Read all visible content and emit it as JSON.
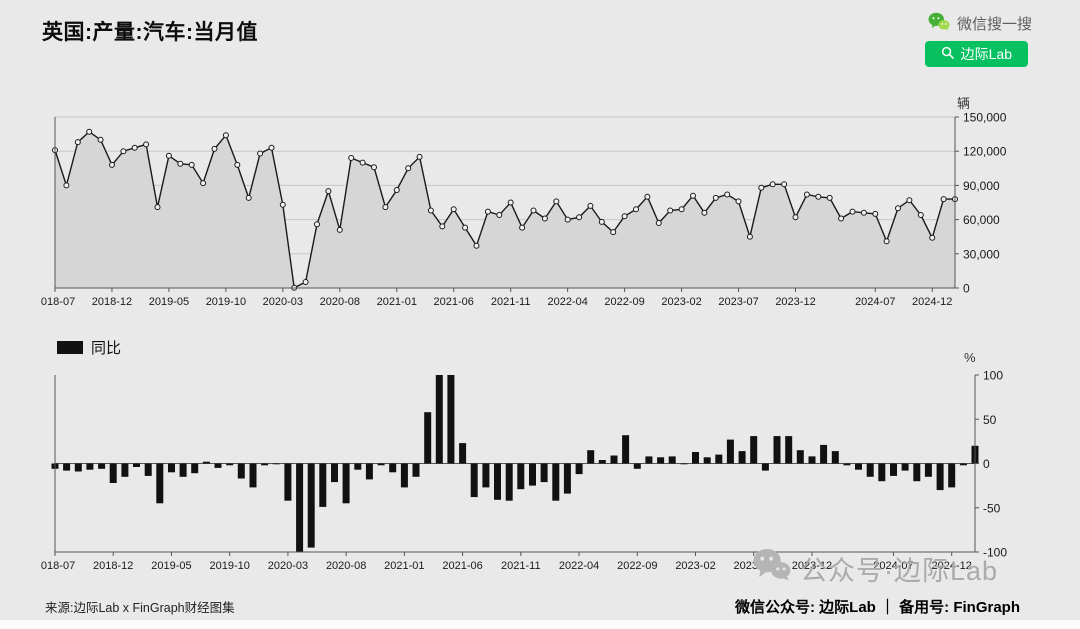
{
  "title": "英国:产量:汽车:当月值",
  "header": {
    "wechat_search": "微信搜一搜",
    "search_button": "边际Lab"
  },
  "colors": {
    "brand_green": "#07c160",
    "line": "#1a1a1a",
    "area_fill": "#d6d6d6",
    "bar": "#111111",
    "grid": "#c7c7c7",
    "axis": "#555555",
    "watermark": "#b5b5b5"
  },
  "footer": {
    "source": "来源:边际Lab x FinGraph财经图集",
    "account_line": "微信公众号: 边际Lab ｜ 备用号: FinGraph",
    "watermark": "公众号·边际Lab"
  },
  "chart_data": [
    {
      "type": "line",
      "name": "uk-car-production-monthly",
      "unit": "辆",
      "ylim": [
        0,
        150000
      ],
      "yticks": [
        0,
        30000,
        60000,
        90000,
        120000,
        150000
      ],
      "grid": true,
      "legend_position": "none",
      "x": [
        "2018-07",
        "2018-08",
        "2018-09",
        "2018-10",
        "2018-11",
        "2018-12",
        "2019-01",
        "2019-02",
        "2019-03",
        "2019-04",
        "2019-05",
        "2019-06",
        "2019-07",
        "2019-08",
        "2019-09",
        "2019-10",
        "2019-11",
        "2019-12",
        "2020-01",
        "2020-02",
        "2020-03",
        "2020-04",
        "2020-05",
        "2020-06",
        "2020-07",
        "2020-08",
        "2020-09",
        "2020-10",
        "2020-11",
        "2020-12",
        "2021-01",
        "2021-02",
        "2021-03",
        "2021-04",
        "2021-05",
        "2021-06",
        "2021-07",
        "2021-08",
        "2021-09",
        "2021-10",
        "2021-11",
        "2021-12",
        "2022-01",
        "2022-02",
        "2022-03",
        "2022-04",
        "2022-05",
        "2022-06",
        "2022-07",
        "2022-08",
        "2022-09",
        "2022-10",
        "2022-11",
        "2022-12",
        "2023-01",
        "2023-02",
        "2023-03",
        "2023-04",
        "2023-05",
        "2023-06",
        "2023-07",
        "2023-08",
        "2023-09",
        "2023-10",
        "2023-11",
        "2023-12",
        "2024-01",
        "2024-02",
        "2024-03",
        "2024-04",
        "2024-05",
        "2024-06",
        "2024-07",
        "2024-08",
        "2024-09",
        "2024-10",
        "2024-11",
        "2024-12",
        "2025-01",
        "2025-02"
      ],
      "x_tick_labels": [
        "2018-07",
        "2018-12",
        "2019-05",
        "2019-10",
        "2020-03",
        "2020-08",
        "2021-01",
        "2021-06",
        "2021-11",
        "2022-04",
        "2022-09",
        "2023-02",
        "2023-07",
        "2023-12",
        "2024-07",
        "2024-12"
      ],
      "values": [
        121000,
        90000,
        128000,
        137000,
        130000,
        108000,
        120000,
        123000,
        126000,
        71000,
        116000,
        109000,
        108000,
        92000,
        122000,
        134000,
        108000,
        79000,
        118000,
        123000,
        73000,
        200,
        5300,
        56000,
        85000,
        51000,
        114000,
        110000,
        106000,
        71000,
        86000,
        105000,
        115000,
        68000,
        54000,
        69000,
        53000,
        37000,
        67000,
        64000,
        75000,
        53000,
        68000,
        61000,
        76000,
        60000,
        62000,
        72000,
        58000,
        49000,
        63000,
        69000,
        80000,
        57000,
        68000,
        69000,
        81000,
        66000,
        79000,
        82000,
        76000,
        45000,
        88000,
        91000,
        91000,
        62000,
        82000,
        80000,
        79000,
        61000,
        67000,
        66000,
        65000,
        41000,
        70000,
        77000,
        64000,
        44000,
        78000,
        78000
      ]
    },
    {
      "type": "bar",
      "name": "uk-car-production-yoy",
      "legend": "同比",
      "unit": "%",
      "ylim": [
        -100,
        100
      ],
      "yticks": [
        -100,
        -50,
        0,
        50,
        100
      ],
      "grid": false,
      "legend_position": "top-left",
      "x": [
        "2018-07",
        "2018-08",
        "2018-09",
        "2018-10",
        "2018-11",
        "2018-12",
        "2019-01",
        "2019-02",
        "2019-03",
        "2019-04",
        "2019-05",
        "2019-06",
        "2019-07",
        "2019-08",
        "2019-09",
        "2019-10",
        "2019-11",
        "2019-12",
        "2020-01",
        "2020-02",
        "2020-03",
        "2020-04",
        "2020-05",
        "2020-06",
        "2020-07",
        "2020-08",
        "2020-09",
        "2020-10",
        "2020-11",
        "2020-12",
        "2021-01",
        "2021-02",
        "2021-03",
        "2021-04",
        "2021-05",
        "2021-06",
        "2021-07",
        "2021-08",
        "2021-09",
        "2021-10",
        "2021-11",
        "2021-12",
        "2022-01",
        "2022-02",
        "2022-03",
        "2022-04",
        "2022-05",
        "2022-06",
        "2022-07",
        "2022-08",
        "2022-09",
        "2022-10",
        "2022-11",
        "2022-12",
        "2023-01",
        "2023-02",
        "2023-03",
        "2023-04",
        "2023-05",
        "2023-06",
        "2023-07",
        "2023-08",
        "2023-09",
        "2023-10",
        "2023-11",
        "2023-12",
        "2024-01",
        "2024-02",
        "2024-03",
        "2024-04",
        "2024-05",
        "2024-06",
        "2024-07",
        "2024-08",
        "2024-09",
        "2024-10",
        "2024-11",
        "2024-12",
        "2025-01",
        "2025-02"
      ],
      "x_tick_labels": [
        "2018-07",
        "2018-12",
        "2019-05",
        "2019-10",
        "2020-03",
        "2020-08",
        "2021-01",
        "2021-06",
        "2021-11",
        "2022-04",
        "2022-09",
        "2023-02",
        "2023-07",
        "2023-12",
        "2024-07",
        "2024-12"
      ],
      "values": [
        -6,
        -8,
        -9,
        -7,
        -6,
        -22,
        -15,
        -4,
        -14,
        -45,
        -10,
        -15,
        -11,
        2,
        -5,
        -2,
        -17,
        -27,
        -2,
        0,
        -42,
        -99.7,
        -95,
        -49,
        -21,
        -45,
        -7,
        -18,
        -2,
        -10,
        -27,
        -15,
        58,
        100,
        100,
        23,
        -38,
        -27,
        -41,
        -42,
        -29,
        -25,
        -21,
        -42,
        -34,
        -12,
        15,
        4,
        9,
        32,
        -6,
        8,
        7,
        8,
        0,
        13,
        7,
        10,
        27,
        14,
        31,
        -8,
        31,
        31,
        15,
        8,
        21,
        14,
        -2,
        -7,
        -15,
        -20,
        -14,
        -8,
        -20,
        -15,
        -30,
        -27,
        -2,
        20
      ]
    }
  ]
}
